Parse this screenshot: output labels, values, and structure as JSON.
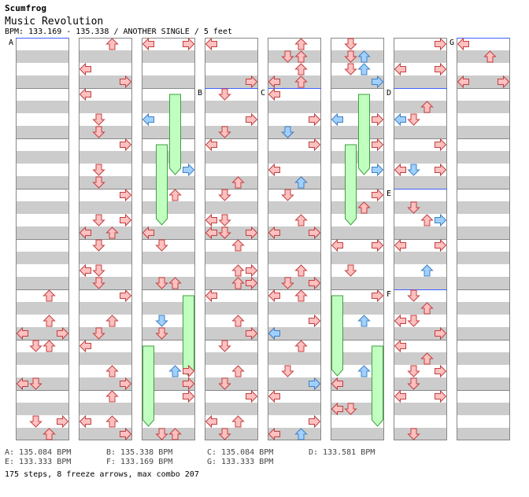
{
  "header": {
    "artist": "Scumfrog",
    "title": "Music Revolution",
    "info": "BPM: 133.169 - 135.338 / ANOTHER SINGLE / 5 feet"
  },
  "chart_data": {
    "type": "step-chart",
    "columns": 8,
    "measures_per_column": 8,
    "lanes": [
      "left",
      "down",
      "up",
      "right"
    ],
    "colors": {
      "note": "#ffc0c0",
      "note_stroke": "#c04040",
      "quarter_note": "#a0d0ff",
      "quarter_stroke": "#4080c0",
      "freeze": "#c0ffc0",
      "freeze_stroke": "#40a040",
      "band": "#cccccc",
      "bpm_line": "#4060ff"
    },
    "bpm_markers": [
      {
        "label": "A",
        "col": 0,
        "row": 0
      },
      {
        "label": "B",
        "col": 3,
        "row": 1
      },
      {
        "label": "C",
        "col": 4,
        "row": 1
      },
      {
        "label": "D",
        "col": 6,
        "row": 1
      },
      {
        "label": "E",
        "col": 6,
        "row": 3
      },
      {
        "label": "F",
        "col": 6,
        "row": 5
      },
      {
        "label": "G",
        "col": 7,
        "row": 0
      }
    ],
    "notes": [
      {
        "c": 0,
        "r": 5,
        "lane": 2,
        "b": 0
      },
      {
        "c": 0,
        "r": 5,
        "lane": 2,
        "b": 2
      },
      {
        "c": 0,
        "r": 5,
        "lane": 0,
        "b": 3
      },
      {
        "c": 0,
        "r": 6,
        "lane": 1,
        "b": 0
      },
      {
        "c": 0,
        "r": 6,
        "lane": 2,
        "b": 0
      },
      {
        "c": 0,
        "r": 5,
        "lane": 3,
        "b": 4
      },
      {
        "c": 0,
        "r": 6,
        "lane": 0,
        "b": 4
      },
      {
        "c": 0,
        "r": 6,
        "lane": 1,
        "b": 4
      },
      {
        "c": 0,
        "r": 7,
        "lane": 1,
        "b": 2
      },
      {
        "c": 0,
        "r": 7,
        "lane": 3,
        "b": 2
      },
      {
        "c": 0,
        "r": 7,
        "lane": 2,
        "b": 4
      },
      {
        "c": 1,
        "r": 0,
        "lane": 2,
        "b": 0
      },
      {
        "c": 1,
        "r": 0,
        "lane": 0,
        "b": 2
      },
      {
        "c": 1,
        "r": 0,
        "lane": 3,
        "b": 3
      },
      {
        "c": 1,
        "r": 1,
        "lane": 0,
        "b": 0
      },
      {
        "c": 1,
        "r": 1,
        "lane": 1,
        "b": 2
      },
      {
        "c": 1,
        "r": 1,
        "lane": 1,
        "b": 3
      },
      {
        "c": 1,
        "r": 2,
        "lane": 3,
        "b": 0
      },
      {
        "c": 1,
        "r": 2,
        "lane": 1,
        "b": 2
      },
      {
        "c": 1,
        "r": 2,
        "lane": 1,
        "b": 4
      },
      {
        "c": 1,
        "r": 3,
        "lane": 3,
        "b": 0
      },
      {
        "c": 1,
        "r": 3,
        "lane": 1,
        "b": 2
      },
      {
        "c": 1,
        "r": 3,
        "lane": 3,
        "b": 2
      },
      {
        "c": 1,
        "r": 3,
        "lane": 0,
        "b": 4
      },
      {
        "c": 1,
        "r": 3,
        "lane": 2,
        "b": 4
      },
      {
        "c": 1,
        "r": 4,
        "lane": 1,
        "b": 0
      },
      {
        "c": 1,
        "r": 4,
        "lane": 0,
        "b": 2
      },
      {
        "c": 1,
        "r": 4,
        "lane": 1,
        "b": 2
      },
      {
        "c": 1,
        "r": 4,
        "lane": 1,
        "b": 4
      },
      {
        "c": 1,
        "r": 5,
        "lane": 3,
        "b": 0
      },
      {
        "c": 1,
        "r": 5,
        "lane": 2,
        "b": 2
      },
      {
        "c": 1,
        "r": 5,
        "lane": 1,
        "b": 4
      },
      {
        "c": 1,
        "r": 6,
        "lane": 0,
        "b": 0
      },
      {
        "c": 1,
        "r": 6,
        "lane": 2,
        "b": 2
      },
      {
        "c": 1,
        "r": 6,
        "lane": 3,
        "b": 4
      },
      {
        "c": 1,
        "r": 7,
        "lane": 2,
        "b": 0
      },
      {
        "c": 1,
        "r": 7,
        "lane": 0,
        "b": 2
      },
      {
        "c": 1,
        "r": 7,
        "lane": 2,
        "b": 2
      },
      {
        "c": 1,
        "r": 7,
        "lane": 3,
        "b": 3
      },
      {
        "c": 1,
        "r": 7,
        "lane": 3,
        "b": 4
      },
      {
        "c": 2,
        "r": 0,
        "lane": 0,
        "b": 0
      },
      {
        "c": 2,
        "r": 0,
        "lane": 3,
        "b": 0
      },
      {
        "c": 2,
        "r": 3,
        "lane": 2,
        "b": 0
      },
      {
        "c": 2,
        "r": 3,
        "lane": 0,
        "b": 4
      },
      {
        "c": 2,
        "r": 4,
        "lane": 1,
        "b": 0
      },
      {
        "c": 2,
        "r": 4,
        "lane": 1,
        "b": 4
      },
      {
        "c": 2,
        "r": 4,
        "lane": 2,
        "b": 4
      },
      {
        "c": 2,
        "r": 5,
        "lane": 1,
        "b": 4
      },
      {
        "c": 2,
        "r": 6,
        "lane": 3,
        "b": 4
      },
      {
        "c": 2,
        "r": 6,
        "lane": 3,
        "b": 2
      },
      {
        "c": 2,
        "r": 7,
        "lane": 3,
        "b": 0
      },
      {
        "c": 2,
        "r": 7,
        "lane": 1,
        "b": 4
      },
      {
        "c": 2,
        "r": 7,
        "lane": 2,
        "b": 4
      },
      {
        "c": 3,
        "r": 0,
        "lane": 0,
        "b": 0
      },
      {
        "c": 3,
        "r": 0,
        "lane": 3,
        "b": 4
      },
      {
        "c": 3,
        "r": 1,
        "lane": 1,
        "b": 0
      },
      {
        "c": 3,
        "r": 1,
        "lane": 3,
        "b": 2
      },
      {
        "c": 3,
        "r": 1,
        "lane": 1,
        "b": 4
      },
      {
        "c": 3,
        "r": 2,
        "lane": 0,
        "b": 0
      },
      {
        "c": 3,
        "r": 2,
        "lane": 2,
        "b": 3
      },
      {
        "c": 3,
        "r": 3,
        "lane": 1,
        "b": 0
      },
      {
        "c": 3,
        "r": 3,
        "lane": 0,
        "b": 2
      },
      {
        "c": 3,
        "r": 3,
        "lane": 1,
        "b": 2
      },
      {
        "c": 3,
        "r": 3,
        "lane": 1,
        "b": 3
      },
      {
        "c": 3,
        "r": 3,
        "lane": 0,
        "b": 4
      },
      {
        "c": 3,
        "r": 3,
        "lane": 1,
        "b": 4
      },
      {
        "c": 3,
        "r": 3,
        "lane": 3,
        "b": 4
      },
      {
        "c": 3,
        "r": 4,
        "lane": 2,
        "b": 0
      },
      {
        "c": 3,
        "r": 4,
        "lane": 2,
        "b": 2
      },
      {
        "c": 3,
        "r": 4,
        "lane": 3,
        "b": 2
      },
      {
        "c": 3,
        "r": 4,
        "lane": 2,
        "b": 4
      },
      {
        "c": 3,
        "r": 4,
        "lane": 3,
        "b": 4
      },
      {
        "c": 3,
        "r": 5,
        "lane": 0,
        "b": 0
      },
      {
        "c": 3,
        "r": 5,
        "lane": 2,
        "b": 2
      },
      {
        "c": 3,
        "r": 5,
        "lane": 3,
        "b": 3
      },
      {
        "c": 3,
        "r": 6,
        "lane": 1,
        "b": 0
      },
      {
        "c": 3,
        "r": 6,
        "lane": 2,
        "b": 2
      },
      {
        "c": 3,
        "r": 6,
        "lane": 1,
        "b": 4
      },
      {
        "c": 3,
        "r": 7,
        "lane": 3,
        "b": 0
      },
      {
        "c": 3,
        "r": 7,
        "lane": 0,
        "b": 2
      },
      {
        "c": 3,
        "r": 7,
        "lane": 2,
        "b": 2
      },
      {
        "c": 3,
        "r": 7,
        "lane": 1,
        "b": 4
      },
      {
        "c": 4,
        "r": 0,
        "lane": 2,
        "b": 0
      },
      {
        "c": 4,
        "r": 0,
        "lane": 1,
        "b": 1
      },
      {
        "c": 4,
        "r": 0,
        "lane": 2,
        "b": 1
      },
      {
        "c": 4,
        "r": 0,
        "lane": 2,
        "b": 2
      },
      {
        "c": 4,
        "r": 0,
        "lane": 0,
        "b": 3
      },
      {
        "c": 4,
        "r": 0,
        "lane": 2,
        "b": 3
      },
      {
        "c": 4,
        "r": 1,
        "lane": 0,
        "b": 0
      },
      {
        "c": 4,
        "r": 1,
        "lane": 3,
        "b": 2
      },
      {
        "c": 4,
        "r": 1,
        "lane": 1,
        "b": 3
      },
      {
        "c": 4,
        "r": 1,
        "lane": 1,
        "b": 4
      },
      {
        "c": 4,
        "r": 2,
        "lane": 3,
        "b": 0
      },
      {
        "c": 4,
        "r": 2,
        "lane": 0,
        "b": 2
      },
      {
        "c": 4,
        "r": 2,
        "lane": 2,
        "b": 3
      },
      {
        "c": 4,
        "r": 3,
        "lane": 1,
        "b": 0
      },
      {
        "c": 4,
        "r": 3,
        "lane": 2,
        "b": 2
      },
      {
        "c": 4,
        "r": 3,
        "lane": 0,
        "b": 3
      },
      {
        "c": 4,
        "r": 3,
        "lane": 3,
        "b": 4
      },
      {
        "c": 4,
        "r": 4,
        "lane": 2,
        "b": 2
      },
      {
        "c": 4,
        "r": 4,
        "lane": 1,
        "b": 4
      },
      {
        "c": 4,
        "r": 4,
        "lane": 3,
        "b": 4
      },
      {
        "c": 4,
        "r": 5,
        "lane": 0,
        "b": 0
      },
      {
        "c": 4,
        "r": 5,
        "lane": 2,
        "b": 0
      },
      {
        "c": 4,
        "r": 5,
        "lane": 3,
        "b": 2
      },
      {
        "c": 4,
        "r": 5,
        "lane": 0,
        "b": 4
      },
      {
        "c": 4,
        "r": 6,
        "lane": 2,
        "b": 0
      },
      {
        "c": 4,
        "r": 6,
        "lane": 1,
        "b": 2
      },
      {
        "c": 4,
        "r": 6,
        "lane": 3,
        "b": 3
      },
      {
        "c": 4,
        "r": 7,
        "lane": 0,
        "b": 0
      },
      {
        "c": 4,
        "r": 7,
        "lane": 3,
        "b": 2
      },
      {
        "c": 4,
        "r": 7,
        "lane": 0,
        "b": 4
      },
      {
        "c": 5,
        "r": 0,
        "lane": 1,
        "b": 0
      },
      {
        "c": 5,
        "r": 0,
        "lane": 1,
        "b": 1
      },
      {
        "c": 5,
        "r": 0,
        "lane": 1,
        "b": 2
      },
      {
        "c": 5,
        "r": 1,
        "lane": 3,
        "b": 2
      },
      {
        "c": 5,
        "r": 2,
        "lane": 3,
        "b": 0
      },
      {
        "c": 5,
        "r": 3,
        "lane": 3,
        "b": 0
      },
      {
        "c": 5,
        "r": 3,
        "lane": 2,
        "b": 1
      },
      {
        "c": 5,
        "r": 4,
        "lane": 0,
        "b": 0
      },
      {
        "c": 5,
        "r": 4,
        "lane": 3,
        "b": 0
      },
      {
        "c": 5,
        "r": 4,
        "lane": 1,
        "b": 2
      },
      {
        "c": 5,
        "r": 5,
        "lane": 3,
        "b": 0
      },
      {
        "c": 5,
        "r": 6,
        "lane": 0,
        "b": 3
      },
      {
        "c": 5,
        "r": 6,
        "lane": 0,
        "b": 4
      },
      {
        "c": 5,
        "r": 7,
        "lane": 1,
        "b": 1
      },
      {
        "c": 5,
        "r": 7,
        "lane": 0,
        "b": 1
      },
      {
        "c": 6,
        "r": 0,
        "lane": 3,
        "b": 0
      },
      {
        "c": 6,
        "r": 0,
        "lane": 0,
        "b": 2
      },
      {
        "c": 6,
        "r": 0,
        "lane": 3,
        "b": 2
      },
      {
        "c": 6,
        "r": 1,
        "lane": 2,
        "b": 1
      },
      {
        "c": 6,
        "r": 1,
        "lane": 1,
        "b": 2
      },
      {
        "c": 6,
        "r": 2,
        "lane": 3,
        "b": 0
      },
      {
        "c": 6,
        "r": 2,
        "lane": 0,
        "b": 2
      },
      {
        "c": 6,
        "r": 2,
        "lane": 3,
        "b": 2
      },
      {
        "c": 6,
        "r": 3,
        "lane": 1,
        "b": 1
      },
      {
        "c": 6,
        "r": 3,
        "lane": 2,
        "b": 2
      },
      {
        "c": 6,
        "r": 4,
        "lane": 0,
        "b": 0
      },
      {
        "c": 6,
        "r": 4,
        "lane": 3,
        "b": 0
      },
      {
        "c": 6,
        "r": 5,
        "lane": 1,
        "b": 0
      },
      {
        "c": 6,
        "r": 5,
        "lane": 2,
        "b": 1
      },
      {
        "c": 6,
        "r": 5,
        "lane": 0,
        "b": 2
      },
      {
        "c": 6,
        "r": 5,
        "lane": 1,
        "b": 2
      },
      {
        "c": 6,
        "r": 5,
        "lane": 3,
        "b": 3
      },
      {
        "c": 6,
        "r": 6,
        "lane": 0,
        "b": 0
      },
      {
        "c": 6,
        "r": 6,
        "lane": 2,
        "b": 1
      },
      {
        "c": 6,
        "r": 6,
        "lane": 1,
        "b": 2
      },
      {
        "c": 6,
        "r": 6,
        "lane": 3,
        "b": 2
      },
      {
        "c": 6,
        "r": 6,
        "lane": 1,
        "b": 4
      },
      {
        "c": 6,
        "r": 7,
        "lane": 0,
        "b": 0
      },
      {
        "c": 6,
        "r": 7,
        "lane": 3,
        "b": 0
      },
      {
        "c": 6,
        "r": 7,
        "lane": 1,
        "b": 4
      },
      {
        "c": 7,
        "r": 0,
        "lane": 0,
        "b": 0
      },
      {
        "c": 7,
        "r": 0,
        "lane": 2,
        "b": 1
      },
      {
        "c": 7,
        "r": 0,
        "lane": 0,
        "b": 3
      },
      {
        "c": 7,
        "r": 0,
        "lane": 3,
        "b": 3
      }
    ],
    "quarter_notes": [
      {
        "c": 2,
        "r": 1,
        "lane": 0,
        "b": 2
      },
      {
        "c": 2,
        "r": 2,
        "lane": 3,
        "b": 2
      },
      {
        "c": 2,
        "r": 5,
        "lane": 1,
        "b": 2
      },
      {
        "c": 2,
        "r": 6,
        "lane": 2,
        "b": 2
      },
      {
        "c": 4,
        "r": 1,
        "lane": 1,
        "b": 3
      },
      {
        "c": 4,
        "r": 2,
        "lane": 2,
        "b": 3
      },
      {
        "c": 4,
        "r": 5,
        "lane": 0,
        "b": 3
      },
      {
        "c": 4,
        "r": 6,
        "lane": 3,
        "b": 3
      },
      {
        "c": 4,
        "r": 7,
        "lane": 2,
        "b": 4
      },
      {
        "c": 5,
        "r": 0,
        "lane": 2,
        "b": 1
      },
      {
        "c": 5,
        "r": 0,
        "lane": 2,
        "b": 2
      },
      {
        "c": 5,
        "r": 0,
        "lane": 3,
        "b": 3
      },
      {
        "c": 5,
        "r": 1,
        "lane": 0,
        "b": 2
      },
      {
        "c": 5,
        "r": 2,
        "lane": 3,
        "b": 2
      },
      {
        "c": 5,
        "r": 5,
        "lane": 2,
        "b": 2
      },
      {
        "c": 5,
        "r": 6,
        "lane": 2,
        "b": 2
      },
      {
        "c": 6,
        "r": 1,
        "lane": 0,
        "b": 2
      },
      {
        "c": 6,
        "r": 2,
        "lane": 1,
        "b": 2
      },
      {
        "c": 6,
        "r": 3,
        "lane": 3,
        "b": 2
      },
      {
        "c": 6,
        "r": 4,
        "lane": 2,
        "b": 2
      }
    ],
    "freezes": [
      {
        "c": 2,
        "lane": 2,
        "start": [
          1,
          0
        ],
        "end": [
          1,
          4
        ]
      },
      {
        "c": 2,
        "lane": 1,
        "start": [
          2,
          0
        ],
        "end": [
          2,
          4
        ]
      },
      {
        "c": 2,
        "lane": 3,
        "start": [
          5,
          0
        ],
        "end": [
          5,
          4
        ]
      },
      {
        "c": 2,
        "lane": 0,
        "start": [
          6,
          0
        ],
        "end": [
          6,
          4
        ]
      },
      {
        "c": 5,
        "lane": 2,
        "start": [
          1,
          0
        ],
        "end": [
          1,
          4
        ]
      },
      {
        "c": 5,
        "lane": 1,
        "start": [
          2,
          0
        ],
        "end": [
          2,
          4
        ]
      },
      {
        "c": 5,
        "lane": 0,
        "start": [
          5,
          0
        ],
        "end": [
          5,
          4
        ]
      },
      {
        "c": 5,
        "lane": 3,
        "start": [
          6,
          0
        ],
        "end": [
          6,
          4
        ]
      }
    ]
  },
  "legend": [
    {
      "text": "A: 135.084 BPM"
    },
    {
      "text": "B: 135.338 BPM"
    },
    {
      "text": "C: 135.084 BPM"
    },
    {
      "text": "D: 133.581 BPM"
    },
    {
      "text": "E: 133.333 BPM"
    },
    {
      "text": "F: 133.169 BPM"
    },
    {
      "text": "G: 133.333 BPM"
    }
  ],
  "footer": {
    "steps": "175 steps, 8 freeze arrows, max combo 207"
  }
}
